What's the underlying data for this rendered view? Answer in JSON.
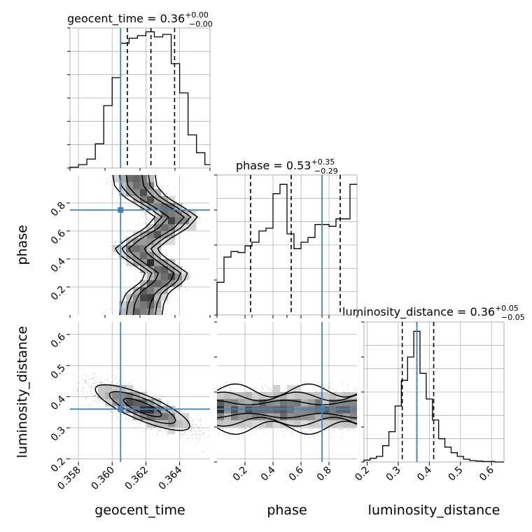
{
  "chart_data": {
    "type": "corner",
    "parameters": [
      "geocent_time",
      "phase",
      "luminosity_distance"
    ],
    "colors": {
      "truth": "#4682b4",
      "hist": "#000000",
      "grid": "#b0b0b0",
      "density_dark": "#333333"
    },
    "marginals": [
      {
        "param": "geocent_time",
        "title_prefix": "geocent_time = ",
        "median": "0.36",
        "err_plus": "+0.00",
        "err_minus": "−0.00",
        "xlim": [
          0.3575,
          0.3658
        ],
        "bin_edges": [
          0.3575,
          0.358,
          0.3585,
          0.359,
          0.3595,
          0.36,
          0.3605,
          0.361,
          0.3615,
          0.362,
          0.3625,
          0.363,
          0.3635,
          0.364,
          0.3645,
          0.365,
          0.3655,
          0.3658
        ],
        "counts": [
          0.3,
          1.3,
          3.5,
          9.5,
          24.5,
          35.5,
          49.0,
          51.0,
          52.0,
          53.5,
          51.5,
          52.5,
          41.0,
          29.5,
          13.0,
          6.0,
          1.3
        ],
        "ymax": 55,
        "quantiles": [
          0.3609,
          0.3623,
          0.3637
        ],
        "truth": 0.3605
      },
      {
        "param": "phase",
        "title_prefix": "phase = ",
        "median": "0.53",
        "err_plus": "+0.35",
        "err_minus": "−0.29",
        "xlim": [
          0.0,
          1.0
        ],
        "bin_edges": [
          0.0,
          0.05,
          0.1,
          0.15,
          0.2,
          0.25,
          0.3,
          0.35,
          0.4,
          0.45,
          0.5,
          0.55,
          0.6,
          0.65,
          0.7,
          0.75,
          0.8,
          0.85,
          0.9,
          0.95,
          1.0
        ],
        "counts": [
          3.5,
          6.2,
          6.8,
          6.7,
          7.4,
          7.8,
          9.0,
          9.3,
          13.0,
          14.0,
          8.7,
          7.1,
          7.8,
          8.3,
          9.7,
          9.7,
          9.5,
          10.3,
          10.3,
          14.0
        ],
        "ymax": 15,
        "quantiles": [
          0.24,
          0.53,
          0.88
        ],
        "truth": 0.75
      },
      {
        "param": "luminosity_distance",
        "title_prefix": "luminosity_distance = ",
        "median": "0.36",
        "err_plus": "+0.05",
        "err_minus": "−0.05",
        "xlim": [
          0.19,
          0.64
        ],
        "bin_edges": [
          0.19,
          0.21,
          0.23,
          0.25,
          0.27,
          0.29,
          0.31,
          0.33,
          0.35,
          0.37,
          0.39,
          0.41,
          0.43,
          0.45,
          0.47,
          0.49,
          0.51,
          0.53,
          0.55,
          0.57,
          0.59,
          0.61,
          0.64
        ],
        "counts": [
          0.4,
          0.8,
          1.2,
          3.5,
          6.5,
          12.0,
          17.5,
          22.5,
          28.0,
          19.0,
          13.5,
          9.0,
          5.0,
          3.2,
          2.0,
          1.2,
          0.6,
          0.3,
          0.2,
          0.1,
          0.1,
          0.0
        ],
        "ymax": 30,
        "quantiles": [
          0.313,
          0.36,
          0.414
        ],
        "truth": 0.36
      }
    ],
    "joint": [
      {
        "x": "geocent_time",
        "y": "phase",
        "xlim": [
          0.3575,
          0.3658
        ],
        "ylim": [
          0.0,
          1.0
        ],
        "truth": [
          0.3605,
          0.75
        ],
        "ridge": [
          [
            0.0,
            0.3617
          ],
          [
            0.08,
            0.3618
          ],
          [
            0.16,
            0.3621
          ],
          [
            0.24,
            0.363
          ],
          [
            0.3,
            0.3632
          ],
          [
            0.36,
            0.3625
          ],
          [
            0.42,
            0.3618
          ],
          [
            0.47,
            0.3614
          ],
          [
            0.54,
            0.3621
          ],
          [
            0.62,
            0.3632
          ],
          [
            0.7,
            0.3638
          ],
          [
            0.76,
            0.3631
          ],
          [
            0.84,
            0.362
          ],
          [
            0.92,
            0.3614
          ],
          [
            1.0,
            0.3613
          ]
        ],
        "ridge_width": 0.0012
      },
      {
        "x": "geocent_time",
        "y": "luminosity_distance",
        "xlim": [
          0.3575,
          0.3658
        ],
        "ylim": [
          0.19,
          0.64
        ],
        "truth": [
          0.3605,
          0.36
        ],
        "center": [
          0.3618,
          0.365
        ],
        "slope": -21.0,
        "spread_along": 0.0014,
        "spread_across": 0.022
      },
      {
        "x": "phase",
        "y": "luminosity_distance",
        "xlim": [
          0.0,
          1.0
        ],
        "ylim": [
          0.19,
          0.64
        ],
        "truth": [
          0.75,
          0.36
        ],
        "center_y": 0.36,
        "spread_y": 0.03
      }
    ],
    "axes": {
      "bottom_labels": [
        "geocent_time",
        "phase",
        "luminosity_distance"
      ],
      "left_labels": [
        "phase",
        "luminosity_distance"
      ],
      "xticks": [
        {
          "values": [
            0.358,
            0.36,
            0.362,
            0.364
          ],
          "labels": [
            "0.358",
            "0.360",
            "0.362",
            "0.364"
          ]
        },
        {
          "values": [
            0.2,
            0.4,
            0.6,
            0.8
          ],
          "labels": [
            "0.2",
            "0.4",
            "0.6",
            "0.8"
          ]
        },
        {
          "values": [
            0.2,
            0.3,
            0.4,
            0.5,
            0.6
          ],
          "labels": [
            "0.2",
            "0.3",
            "0.4",
            "0.5",
            "0.6"
          ]
        }
      ],
      "yticks": [
        {
          "values": [
            0.2,
            0.4,
            0.6,
            0.8
          ],
          "labels": [
            "0.2",
            "0.4",
            "0.6",
            "0.8"
          ]
        },
        {
          "values": [
            0.2,
            0.3,
            0.4,
            0.5,
            0.6
          ],
          "labels": [
            "0.2",
            "0.3",
            "0.4",
            "0.5",
            "0.6"
          ]
        }
      ]
    },
    "grid": true
  }
}
